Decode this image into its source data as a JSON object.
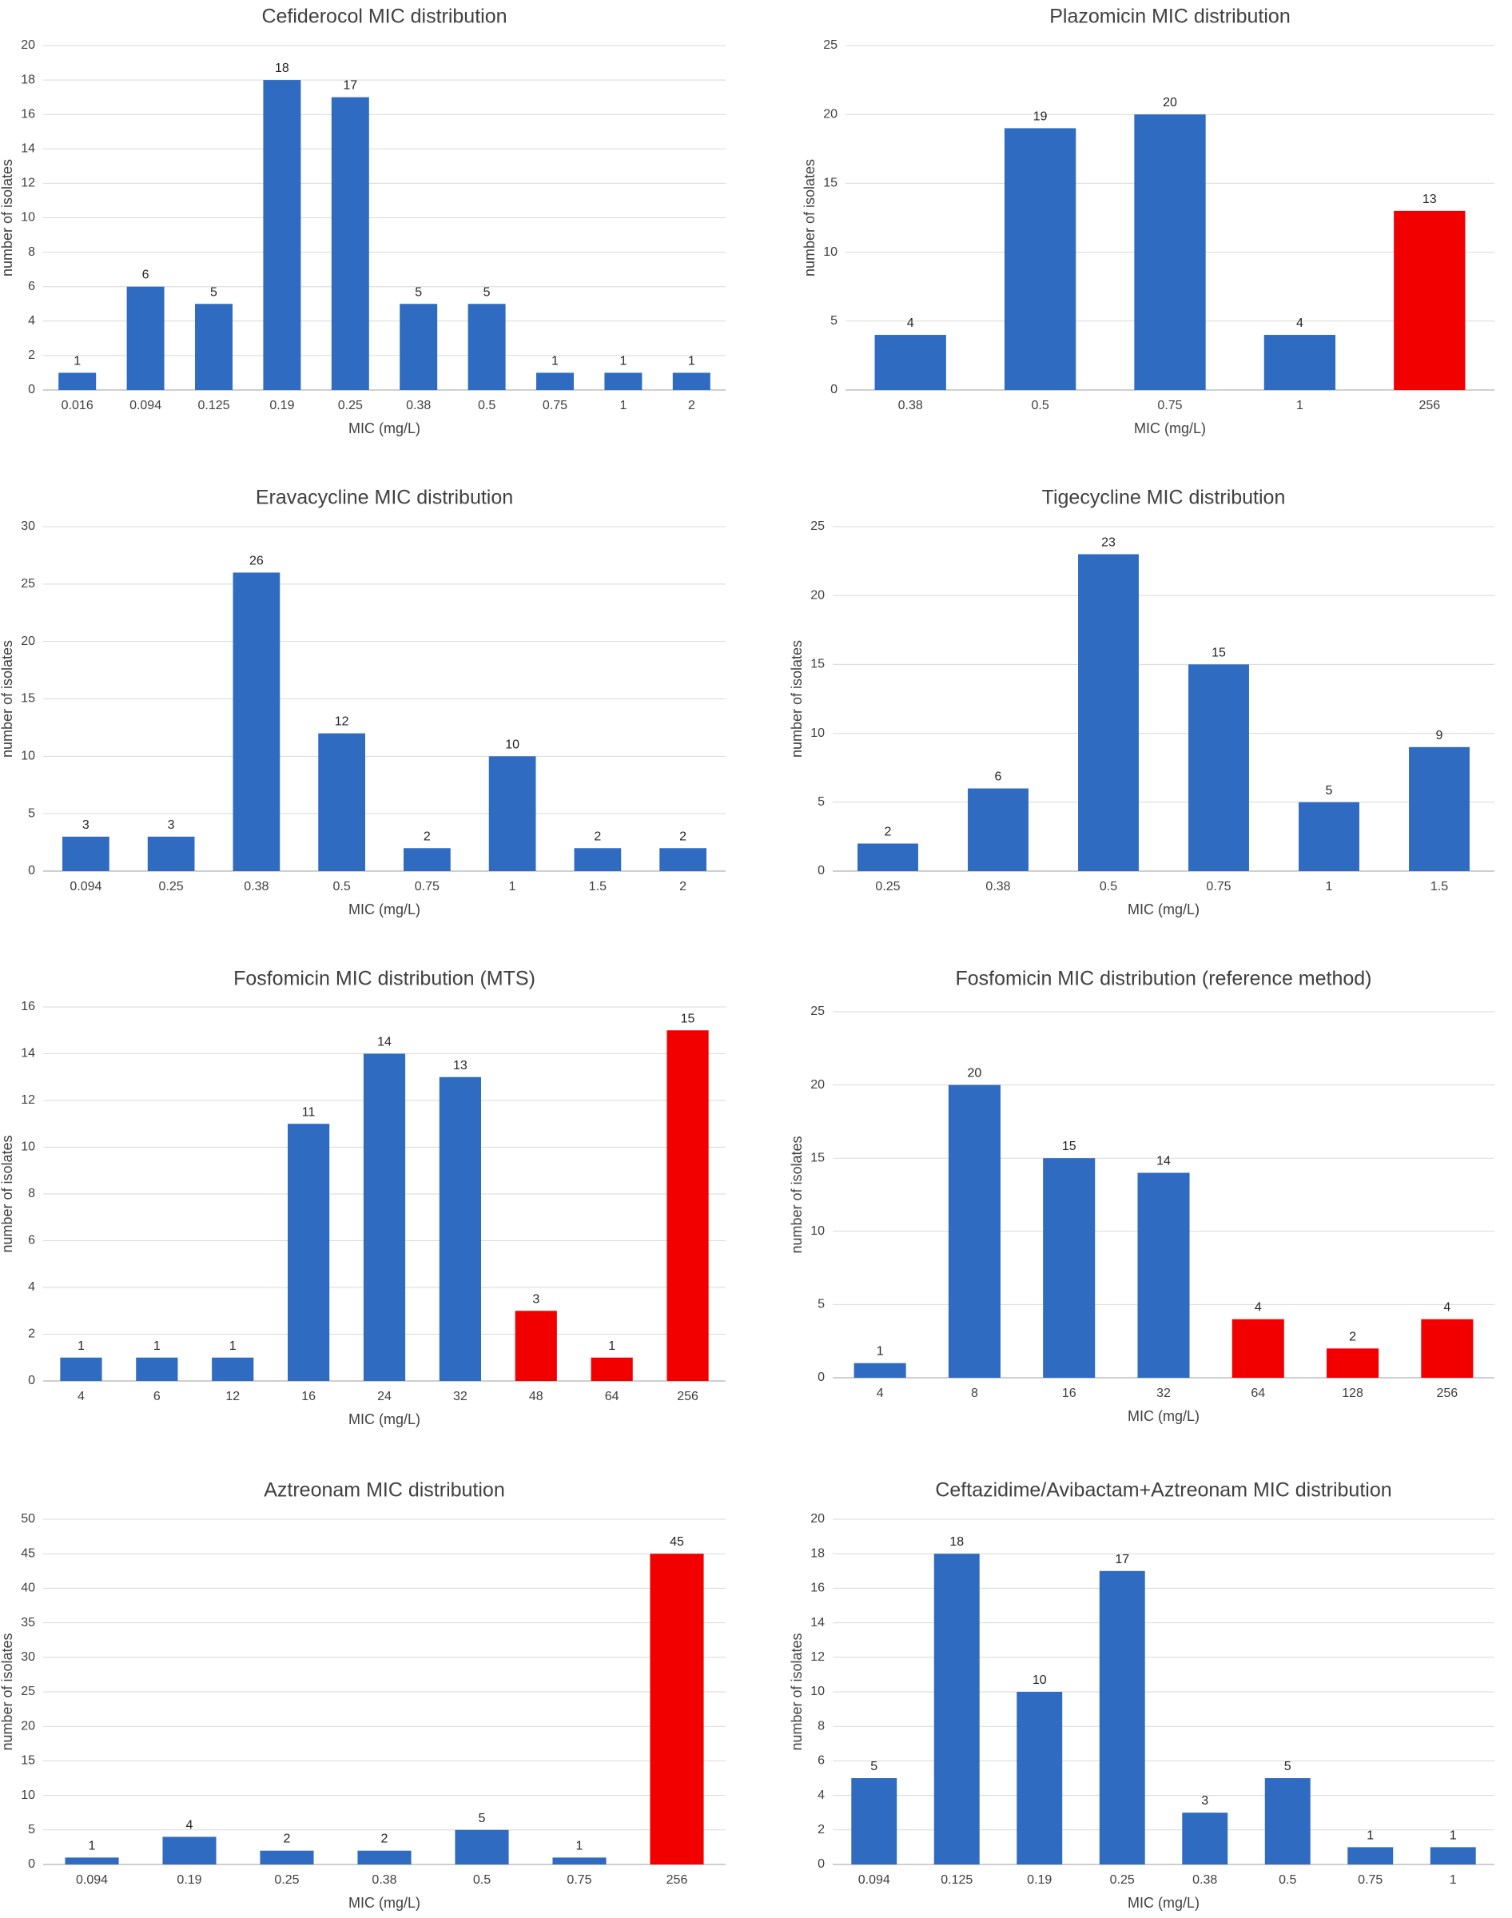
{
  "colors": {
    "normal": "#2e6bc1",
    "resistant": "#f20000"
  },
  "chart_data": [
    {
      "type": "bar",
      "title": "Cefiderocol MIC distribution",
      "xlabel": "MIC (mg/L)",
      "ylabel": "number of isolates",
      "ylim": [
        0,
        20
      ],
      "ystep": 2,
      "grid": true,
      "categories": [
        "0.016",
        "0.094",
        "0.125",
        "0.19",
        "0.25",
        "0.38",
        "0.5",
        "0.75",
        "1",
        "2"
      ],
      "values": [
        1,
        6,
        5,
        18,
        17,
        5,
        5,
        1,
        1,
        1
      ],
      "bar_colors": [
        "normal",
        "normal",
        "normal",
        "normal",
        "normal",
        "normal",
        "normal",
        "normal",
        "normal",
        "normal"
      ]
    },
    {
      "type": "bar",
      "title": "Plazomicin MIC distribution",
      "xlabel": "MIC (mg/L)",
      "ylabel": "number of isolates",
      "ylim": [
        0,
        25
      ],
      "ystep": 5,
      "grid": true,
      "categories": [
        "0.38",
        "0.5",
        "0.75",
        "1",
        "256"
      ],
      "values": [
        4,
        19,
        20,
        4,
        13
      ],
      "bar_colors": [
        "normal",
        "normal",
        "normal",
        "normal",
        "resistant"
      ]
    },
    {
      "type": "bar",
      "title": "Eravacycline MIC distribution",
      "xlabel": "MIC (mg/L)",
      "ylabel": "number of isolates",
      "ylim": [
        0,
        30
      ],
      "ystep": 5,
      "grid": true,
      "categories": [
        "0.094",
        "0.25",
        "0.38",
        "0.5",
        "0.75",
        "1",
        "1.5",
        "2"
      ],
      "values": [
        3,
        3,
        26,
        12,
        2,
        10,
        2,
        2
      ],
      "bar_colors": [
        "normal",
        "normal",
        "normal",
        "normal",
        "normal",
        "normal",
        "normal",
        "normal"
      ]
    },
    {
      "type": "bar",
      "title": "Tigecycline MIC distribution",
      "xlabel": "MIC (mg/L)",
      "ylabel": "number of isolates",
      "ylim": [
        0,
        25
      ],
      "ystep": 5,
      "grid": true,
      "categories": [
        "0.25",
        "0.38",
        "0.5",
        "0.75",
        "1",
        "1.5"
      ],
      "values": [
        2,
        6,
        23,
        15,
        5,
        9
      ],
      "bar_colors": [
        "normal",
        "normal",
        "normal",
        "normal",
        "normal",
        "normal"
      ]
    },
    {
      "type": "bar",
      "title": "Fosfomicin MIC distribution (MTS)",
      "xlabel": "MIC (mg/L)",
      "ylabel": "number of isolates",
      "ylim": [
        0,
        16
      ],
      "ystep": 2,
      "grid": true,
      "categories": [
        "4",
        "6",
        "12",
        "16",
        "24",
        "32",
        "48",
        "64",
        "256"
      ],
      "values": [
        1,
        1,
        1,
        11,
        14,
        13,
        3,
        1,
        15
      ],
      "bar_colors": [
        "normal",
        "normal",
        "normal",
        "normal",
        "normal",
        "normal",
        "resistant",
        "resistant",
        "resistant"
      ]
    },
    {
      "type": "bar",
      "title": "Fosfomicin MIC distribution (reference method)",
      "xlabel": "MIC (mg/L)",
      "ylabel": "number of isolates",
      "ylim": [
        0,
        25
      ],
      "ystep": 5,
      "grid": true,
      "categories": [
        "4",
        "8",
        "16",
        "32",
        "64",
        "128",
        "256"
      ],
      "values": [
        1,
        20,
        15,
        14,
        4,
        2,
        4
      ],
      "bar_colors": [
        "normal",
        "normal",
        "normal",
        "normal",
        "resistant",
        "resistant",
        "resistant"
      ]
    },
    {
      "type": "bar",
      "title": "Aztreonam MIC distribution",
      "xlabel": "MIC (mg/L)",
      "ylabel": "number of isolates",
      "ylim": [
        0,
        50
      ],
      "ystep": 5,
      "grid": true,
      "categories": [
        "0.094",
        "0.19",
        "0.25",
        "0.38",
        "0.5",
        "0.75",
        "256"
      ],
      "values": [
        1,
        4,
        2,
        2,
        5,
        1,
        45
      ],
      "bar_colors": [
        "normal",
        "normal",
        "normal",
        "normal",
        "normal",
        "normal",
        "resistant"
      ]
    },
    {
      "type": "bar",
      "title": "Ceftazidime/Avibactam+Aztreonam MIC distribution",
      "xlabel": "MIC (mg/L)",
      "ylabel": "number of isolates",
      "ylim": [
        0,
        20
      ],
      "ystep": 2,
      "grid": true,
      "categories": [
        "0.094",
        "0.125",
        "0.19",
        "0.25",
        "0.38",
        "0.5",
        "0.75",
        "1"
      ],
      "values": [
        5,
        18,
        10,
        17,
        3,
        5,
        1,
        1
      ],
      "bar_colors": [
        "normal",
        "normal",
        "normal",
        "normal",
        "normal",
        "normal",
        "normal",
        "normal"
      ]
    }
  ]
}
